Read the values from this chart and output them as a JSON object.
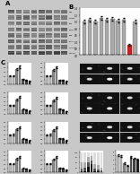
{
  "bg_color": "#c8c8c8",
  "wb_rows": 8,
  "wb_cols": 8,
  "wb_row_intensities": [
    [
      0.6,
      0.55,
      0.5,
      0.55,
      0.6,
      0.55,
      0.5,
      0.55
    ],
    [
      0.5,
      0.55,
      0.6,
      0.5,
      0.55,
      0.6,
      0.5,
      0.55
    ],
    [
      0.45,
      0.5,
      0.55,
      0.5,
      0.45,
      0.5,
      0.55,
      0.5
    ],
    [
      0.5,
      0.55,
      0.5,
      0.55,
      0.5,
      0.55,
      0.5,
      0.55
    ],
    [
      0.55,
      0.5,
      0.55,
      0.5,
      0.55,
      0.5,
      0.55,
      0.5
    ],
    [
      0.6,
      0.55,
      0.5,
      0.55,
      0.6,
      0.55,
      0.5,
      0.55
    ],
    [
      0.5,
      0.55,
      0.6,
      0.5,
      0.55,
      0.6,
      0.5,
      0.55
    ],
    [
      0.7,
      0.65,
      0.7,
      0.65,
      0.7,
      0.65,
      0.7,
      0.65
    ]
  ],
  "bar_B_values": [
    1.0,
    1.05,
    1.0,
    1.1,
    1.05,
    1.08,
    1.03,
    1.06,
    0.3,
    1.0
  ],
  "bar_B_errors": [
    0.05,
    0.05,
    0.05,
    0.05,
    0.05,
    0.05,
    0.05,
    0.05,
    0.03,
    0.05
  ],
  "bar_B_colors": [
    "#aaaaaa",
    "#aaaaaa",
    "#aaaaaa",
    "#aaaaaa",
    "#aaaaaa",
    "#aaaaaa",
    "#aaaaaa",
    "#aaaaaa",
    "#cc2222",
    "#aaaaaa"
  ],
  "bar_B_ylim": [
    0,
    1.4
  ],
  "bar_groups_7": [
    "",
    "",
    "",
    "",
    "",
    "",
    ""
  ],
  "bar_c1_values": [
    1.0,
    1.0,
    1.8,
    2.1,
    0.6,
    0.5,
    0.4
  ],
  "bar_c1_errors": [
    0.05,
    0.07,
    0.12,
    0.15,
    0.05,
    0.05,
    0.04
  ],
  "bar_c1_colors": [
    "#bbbbbb",
    "#bbbbbb",
    "#888888",
    "#888888",
    "#555555",
    "#444444",
    "#222222"
  ],
  "bar_c2_values": [
    1.0,
    1.0,
    1.7,
    2.0,
    0.5,
    0.5,
    0.35
  ],
  "bar_c2_errors": [
    0.05,
    0.07,
    0.11,
    0.14,
    0.05,
    0.05,
    0.04
  ],
  "bar_c2_colors": [
    "#bbbbbb",
    "#bbbbbb",
    "#888888",
    "#888888",
    "#555555",
    "#444444",
    "#222222"
  ],
  "bar_d1_values": [
    1.0,
    1.0,
    1.7,
    2.0,
    0.55,
    0.5,
    0.35
  ],
  "bar_d1_errors": [
    0.05,
    0.07,
    0.11,
    0.13,
    0.05,
    0.05,
    0.04
  ],
  "bar_d1_colors": [
    "#bbbbbb",
    "#bbbbbb",
    "#888888",
    "#888888",
    "#555555",
    "#444444",
    "#222222"
  ],
  "bar_d2_values": [
    1.0,
    1.0,
    1.6,
    1.9,
    0.6,
    0.5,
    0.3
  ],
  "bar_d2_errors": [
    0.05,
    0.07,
    0.1,
    0.12,
    0.05,
    0.05,
    0.04
  ],
  "bar_d2_colors": [
    "#bbbbbb",
    "#bbbbbb",
    "#888888",
    "#888888",
    "#555555",
    "#444444",
    "#222222"
  ],
  "bar_e1_values": [
    1.0,
    1.0,
    1.6,
    1.85,
    0.5,
    0.45,
    0.3
  ],
  "bar_e1_errors": [
    0.05,
    0.06,
    0.1,
    0.12,
    0.05,
    0.05,
    0.03
  ],
  "bar_e1_colors": [
    "#bbbbbb",
    "#bbbbbb",
    "#888888",
    "#888888",
    "#555555",
    "#444444",
    "#222222"
  ],
  "bar_e2_values": [
    1.0,
    1.0,
    1.55,
    1.8,
    0.55,
    0.5,
    0.3
  ],
  "bar_e2_errors": [
    0.05,
    0.06,
    0.09,
    0.11,
    0.05,
    0.05,
    0.03
  ],
  "bar_e2_colors": [
    "#bbbbbb",
    "#bbbbbb",
    "#888888",
    "#888888",
    "#555555",
    "#444444",
    "#222222"
  ],
  "stacked_s1": [
    5,
    5,
    28,
    42,
    5,
    4,
    3
  ],
  "stacked_s2": [
    15,
    17,
    22,
    18,
    12,
    10,
    7
  ],
  "stacked_s3": [
    30,
    28,
    25,
    20,
    25,
    22,
    15
  ],
  "stacked_s4": [
    50,
    50,
    25,
    20,
    58,
    64,
    75
  ],
  "stacked_colors": [
    "#111111",
    "#555555",
    "#aaaaaa",
    "#dddddd"
  ],
  "stacked_n": 7,
  "bar_f2_values": [
    4.0,
    3.9,
    2.2,
    1.6,
    3.6,
    3.3,
    3.1
  ],
  "bar_f2_errors": [
    0.2,
    0.18,
    0.15,
    0.12,
    0.2,
    0.18,
    0.15
  ],
  "bar_f2_colors": [
    "#bbbbbb",
    "#bbbbbb",
    "#888888",
    "#888888",
    "#555555",
    "#444444",
    "#222222"
  ],
  "bar_f2_ylim": [
    0,
    5
  ],
  "bar_ylim_standard": [
    0,
    2.5
  ]
}
